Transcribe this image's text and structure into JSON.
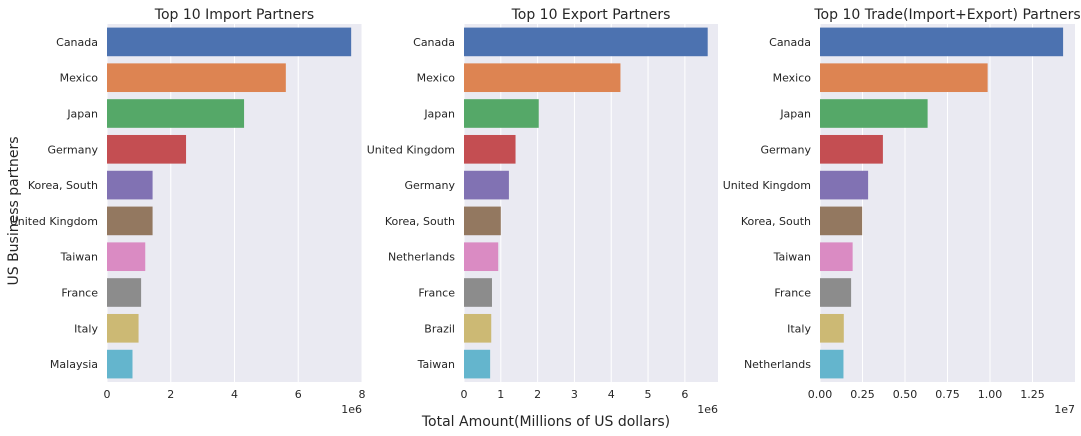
{
  "figure": {
    "ylabel": "US Business partners",
    "xlabel": "Total Amount(Millions of US dollars)"
  },
  "palette": [
    "#4c72b0",
    "#dd8452",
    "#55a868",
    "#c44e52",
    "#8172b3",
    "#937860",
    "#da8bc3",
    "#8c8c8c",
    "#ccb974",
    "#64b5cd"
  ],
  "chart_data": [
    {
      "type": "bar",
      "orientation": "horizontal",
      "title": "Top 10 Import Partners",
      "categories": [
        "Canada",
        "Mexico",
        "Japan",
        "Germany",
        "Korea, South",
        "United Kingdom",
        "Taiwan",
        "France",
        "Italy",
        "Malaysia"
      ],
      "values": [
        7660000,
        5610000,
        4300000,
        2480000,
        1430000,
        1430000,
        1200000,
        1070000,
        990000,
        800000
      ],
      "xlim": [
        0,
        8000000
      ],
      "xticks": [
        0,
        2000000,
        4000000,
        6000000,
        8000000
      ],
      "xtick_labels": [
        "0",
        "2",
        "4",
        "6",
        "8"
      ],
      "offset_label": "1e6",
      "grid": true
    },
    {
      "type": "bar",
      "orientation": "horizontal",
      "title": "Top 10 Export Partners",
      "categories": [
        "Canada",
        "Mexico",
        "Japan",
        "United Kingdom",
        "Germany",
        "Korea, South",
        "Netherlands",
        "France",
        "Brazil",
        "Taiwan"
      ],
      "values": [
        6620000,
        4250000,
        2030000,
        1400000,
        1220000,
        1000000,
        930000,
        760000,
        740000,
        710000
      ],
      "xlim": [
        0,
        6900000
      ],
      "xticks": [
        0,
        1000000,
        2000000,
        3000000,
        4000000,
        5000000,
        6000000
      ],
      "xtick_labels": [
        "0",
        "1",
        "2",
        "3",
        "4",
        "5",
        "6"
      ],
      "offset_label": "1e6",
      "grid": true
    },
    {
      "type": "bar",
      "orientation": "horizontal",
      "title": "Top 10 Trade(Import+Export) Partners",
      "categories": [
        "Canada",
        "Mexico",
        "Japan",
        "Germany",
        "United Kingdom",
        "Korea, South",
        "Taiwan",
        "France",
        "Italy",
        "Netherlands"
      ],
      "values": [
        14300000,
        9860000,
        6330000,
        3700000,
        2830000,
        2480000,
        1920000,
        1830000,
        1400000,
        1380000
      ],
      "xlim": [
        0,
        15000000
      ],
      "xticks": [
        0,
        2500000,
        5000000,
        7500000,
        10000000,
        12500000
      ],
      "xtick_labels": [
        "0.00",
        "0.25",
        "0.50",
        "0.75",
        "1.00",
        "1.25"
      ],
      "offset_label": "1e7",
      "grid": true
    }
  ]
}
